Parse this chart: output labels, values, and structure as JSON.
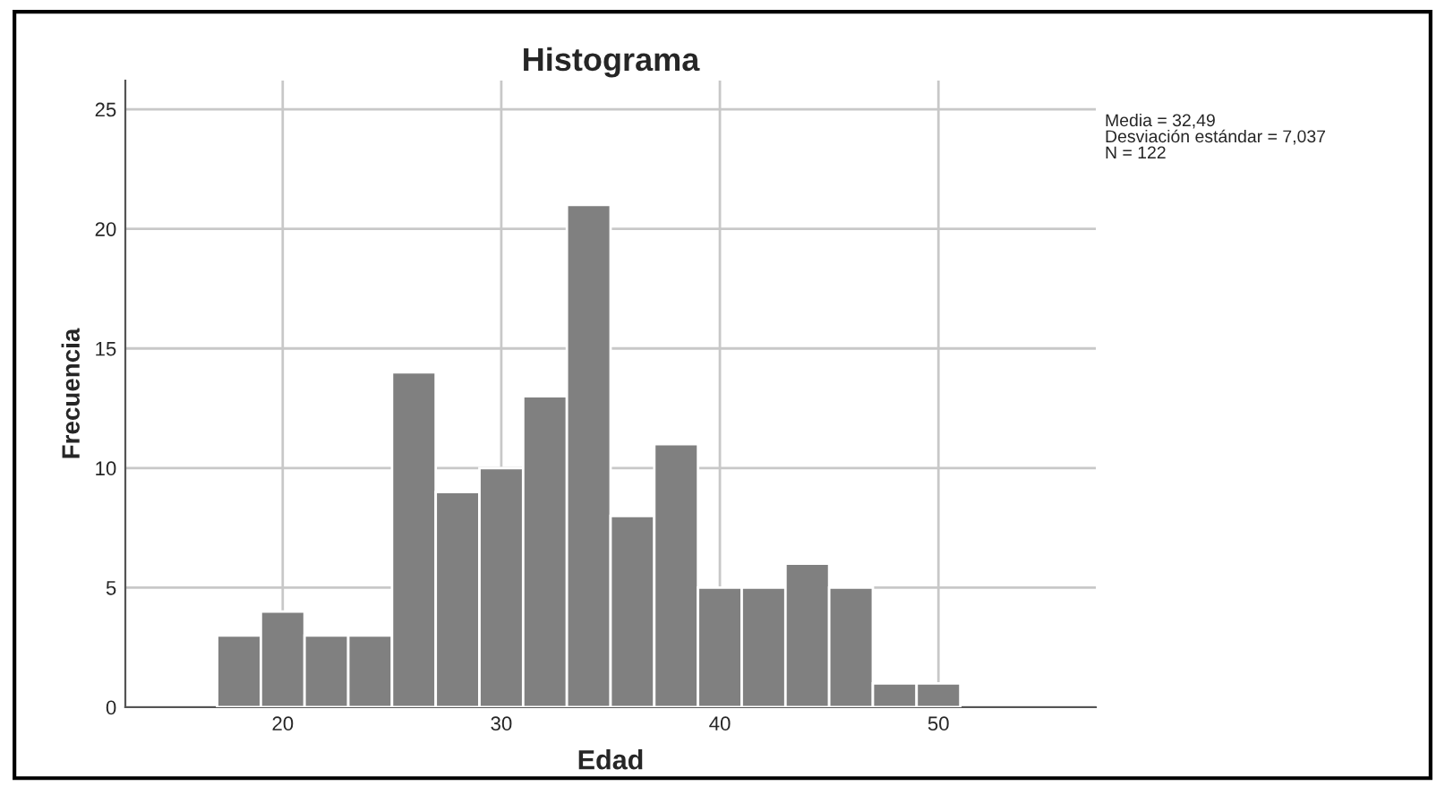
{
  "chart_data": {
    "type": "histogram",
    "title": "Histograma",
    "xlabel": "Edad",
    "ylabel": "Frecuencia",
    "bins": [
      17,
      19,
      21,
      23,
      25,
      27,
      29,
      31,
      33,
      35,
      37,
      39,
      41,
      43,
      45,
      47,
      49,
      51
    ],
    "values": [
      3,
      4,
      3,
      3,
      14,
      9,
      10,
      13,
      21,
      8,
      11,
      5,
      5,
      6,
      5,
      1,
      1
    ],
    "color": "#808080",
    "xlim": [
      12.8,
      57.2
    ],
    "ylim": [
      0,
      26.2
    ],
    "xticks": [
      20,
      30,
      40,
      50
    ],
    "yticks": [
      0,
      5,
      10,
      15,
      20,
      25
    ],
    "grid": true,
    "annotations": [
      "Media = 32,49",
      "Desviación estándar = 7,037",
      "N = 122"
    ]
  }
}
